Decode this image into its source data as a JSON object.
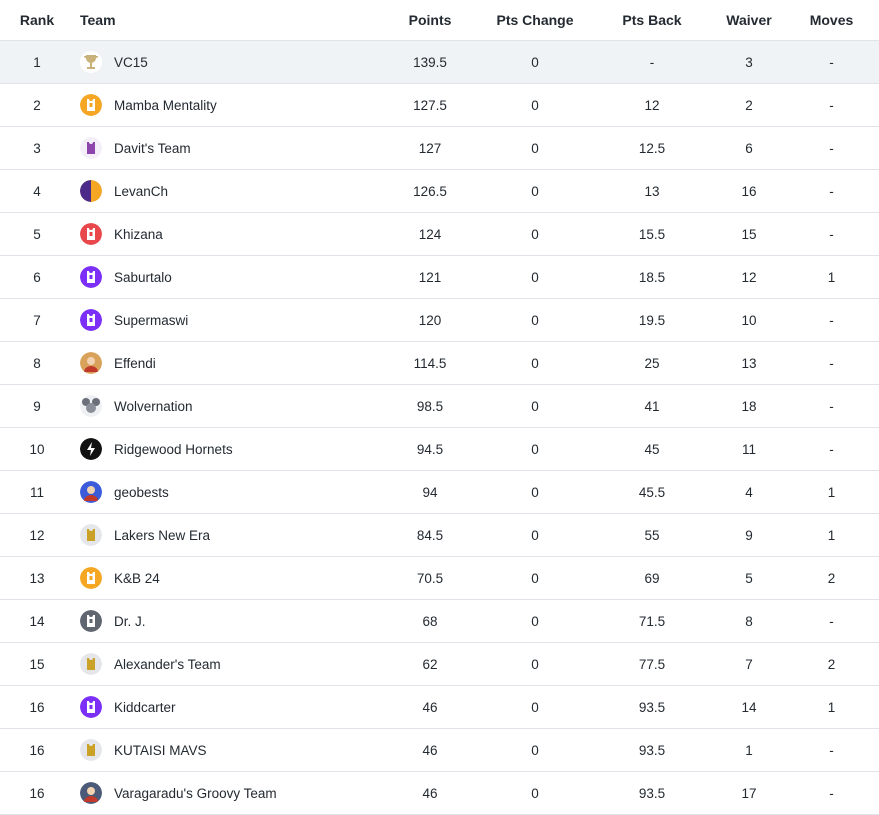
{
  "headers": {
    "rank": "Rank",
    "team": "Team",
    "points": "Points",
    "pts_change": "Pts Change",
    "pts_back": "Pts Back",
    "waiver": "Waiver",
    "moves": "Moves"
  },
  "rows": [
    {
      "rank": "1",
      "team": "VC15",
      "points": "139.5",
      "pts_change": "0",
      "pts_back": "-",
      "waiver": "3",
      "moves": "-",
      "icon": "trophy-icon",
      "color": "#c9b27a"
    },
    {
      "rank": "2",
      "team": "Mamba Mentality",
      "points": "127.5",
      "pts_change": "0",
      "pts_back": "12",
      "waiver": "2",
      "moves": "-",
      "icon": "jersey-icon",
      "color": "#f5a623"
    },
    {
      "rank": "3",
      "team": "Davit's Team",
      "points": "127",
      "pts_change": "0",
      "pts_back": "12.5",
      "waiver": "6",
      "moves": "-",
      "icon": "jersey-icon",
      "color": "#f3eef8"
    },
    {
      "rank": "4",
      "team": "LevanCh",
      "points": "126.5",
      "pts_change": "0",
      "pts_back": "13",
      "waiver": "16",
      "moves": "-",
      "icon": "split-circle-icon",
      "color": "#f5a623"
    },
    {
      "rank": "5",
      "team": "Khizana",
      "points": "124",
      "pts_change": "0",
      "pts_back": "15.5",
      "waiver": "15",
      "moves": "-",
      "icon": "jersey-icon",
      "color": "#e8474c"
    },
    {
      "rank": "6",
      "team": "Saburtalo",
      "points": "121",
      "pts_change": "0",
      "pts_back": "18.5",
      "waiver": "12",
      "moves": "1",
      "icon": "jersey-icon",
      "color": "#7b2ff7"
    },
    {
      "rank": "7",
      "team": "Supermaswi",
      "points": "120",
      "pts_change": "0",
      "pts_back": "19.5",
      "waiver": "10",
      "moves": "-",
      "icon": "jersey-icon",
      "color": "#7b2ff7"
    },
    {
      "rank": "8",
      "team": "Effendi",
      "points": "114.5",
      "pts_change": "0",
      "pts_back": "25",
      "waiver": "13",
      "moves": "-",
      "icon": "avatar-icon",
      "color": "#d9a25a"
    },
    {
      "rank": "9",
      "team": "Wolvernation",
      "points": "98.5",
      "pts_change": "0",
      "pts_back": "41",
      "waiver": "18",
      "moves": "-",
      "icon": "mouse-icon",
      "color": "#eef0f4"
    },
    {
      "rank": "10",
      "team": "Ridgewood Hornets",
      "points": "94.5",
      "pts_change": "0",
      "pts_back": "45",
      "waiver": "11",
      "moves": "-",
      "icon": "bolt-icon",
      "color": "#111111"
    },
    {
      "rank": "11",
      "team": "geobests",
      "points": "94",
      "pts_change": "0",
      "pts_back": "45.5",
      "waiver": "4",
      "moves": "1",
      "icon": "avatar-icon",
      "color": "#3b5bdb"
    },
    {
      "rank": "12",
      "team": "Lakers New Era",
      "points": "84.5",
      "pts_change": "0",
      "pts_back": "55",
      "waiver": "9",
      "moves": "1",
      "icon": "jersey-icon",
      "color": "#e4e6ea"
    },
    {
      "rank": "13",
      "team": "K&B 24",
      "points": "70.5",
      "pts_change": "0",
      "pts_back": "69",
      "waiver": "5",
      "moves": "2",
      "icon": "jersey-icon",
      "color": "#f5a623"
    },
    {
      "rank": "14",
      "team": "Dr. J.",
      "points": "68",
      "pts_change": "0",
      "pts_back": "71.5",
      "waiver": "8",
      "moves": "-",
      "icon": "jersey-icon",
      "color": "#5f6670"
    },
    {
      "rank": "15",
      "team": "Alexander's Team",
      "points": "62",
      "pts_change": "0",
      "pts_back": "77.5",
      "waiver": "7",
      "moves": "2",
      "icon": "jersey-icon",
      "color": "#e4e6ea"
    },
    {
      "rank": "16",
      "team": "Kiddcarter",
      "points": "46",
      "pts_change": "0",
      "pts_back": "93.5",
      "waiver": "14",
      "moves": "1",
      "icon": "jersey-icon",
      "color": "#7b2ff7"
    },
    {
      "rank": "16",
      "team": "KUTAISI MAVS",
      "points": "46",
      "pts_change": "0",
      "pts_back": "93.5",
      "waiver": "1",
      "moves": "-",
      "icon": "jersey-icon",
      "color": "#e4e6ea"
    },
    {
      "rank": "16",
      "team": "Varagaradu's Groovy Team",
      "points": "46",
      "pts_change": "0",
      "pts_back": "93.5",
      "waiver": "17",
      "moves": "-",
      "icon": "avatar-icon",
      "color": "#4a5a78"
    }
  ]
}
